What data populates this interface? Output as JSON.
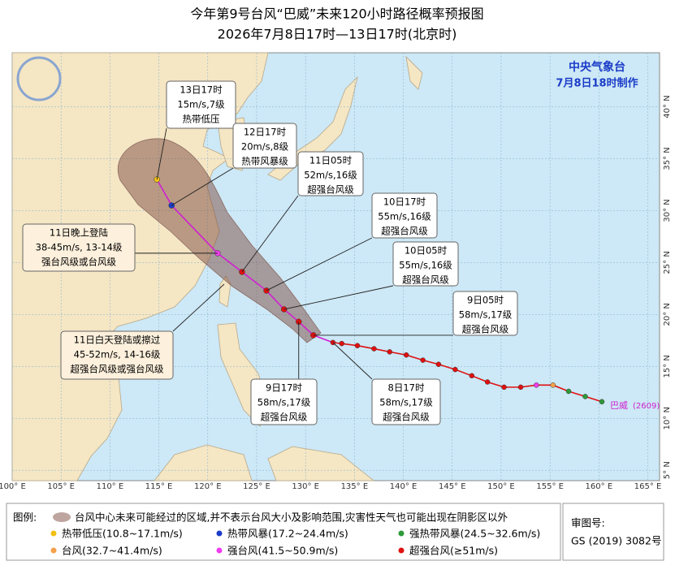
{
  "title": "今年第9号台风“巴威”未来120小时路径概率预报图",
  "subtitle": "2026年7月8日17时—13日17时(北京时)",
  "agency": "中央气象台",
  "issued": "7月8日18时制作",
  "typhoon": {
    "name": "巴威",
    "code": "(2609)"
  },
  "map": {
    "lon_range": [
      100,
      166.2
    ],
    "lat_range": [
      4,
      45.2
    ],
    "lon_ticks": [
      {
        "value": 100,
        "label": "100° E"
      },
      {
        "value": 105,
        "label": "105° E"
      },
      {
        "value": 110,
        "label": "110° E"
      },
      {
        "value": 115,
        "label": "115° E"
      },
      {
        "value": 120,
        "label": "120° E"
      },
      {
        "value": 125,
        "label": "125° E"
      },
      {
        "value": 130,
        "label": "130° E"
      },
      {
        "value": 135,
        "label": "135° E"
      },
      {
        "value": 140,
        "label": "140° E"
      },
      {
        "value": 145,
        "label": "145° E"
      },
      {
        "value": 150,
        "label": "150° E"
      },
      {
        "value": 155,
        "label": "155° E"
      },
      {
        "value": 160,
        "label": "160° E"
      },
      {
        "value": 165,
        "label": "165° E"
      }
    ],
    "lat_ticks": [
      {
        "value": 5,
        "label": "5° N"
      },
      {
        "value": 10,
        "label": "10° N"
      },
      {
        "value": 15,
        "label": "15° N"
      },
      {
        "value": 20,
        "label": "20° N"
      },
      {
        "value": 25,
        "label": "25° N"
      },
      {
        "value": 30,
        "label": "30° N"
      },
      {
        "value": 35,
        "label": "35° N"
      },
      {
        "value": 40,
        "label": "40° N"
      }
    ]
  },
  "observed": [
    {
      "lon": 160.3,
      "lat": 11.6,
      "category": 2
    },
    {
      "lon": 158.6,
      "lat": 12.1,
      "category": 2
    },
    {
      "lon": 156.9,
      "lat": 12.6,
      "category": 2
    },
    {
      "lon": 155.3,
      "lat": 13.2,
      "category": 3
    },
    {
      "lon": 153.6,
      "lat": 13.2,
      "category": 4
    },
    {
      "lon": 152.0,
      "lat": 13.0,
      "category": 5
    },
    {
      "lon": 150.3,
      "lat": 13.0,
      "category": 5
    },
    {
      "lon": 148.6,
      "lat": 13.5,
      "category": 5
    },
    {
      "lon": 147.0,
      "lat": 14.1,
      "category": 5
    },
    {
      "lon": 145.3,
      "lat": 14.7,
      "category": 5
    },
    {
      "lon": 143.6,
      "lat": 15.2,
      "category": 5
    },
    {
      "lon": 142.0,
      "lat": 15.6,
      "category": 5
    },
    {
      "lon": 140.3,
      "lat": 16.1,
      "category": 5
    },
    {
      "lon": 138.6,
      "lat": 16.4,
      "category": 5
    },
    {
      "lon": 137.0,
      "lat": 16.7,
      "category": 5
    },
    {
      "lon": 135.3,
      "lat": 17.0,
      "category": 5
    },
    {
      "lon": 133.7,
      "lat": 17.2,
      "category": 5
    },
    {
      "lon": 132.8,
      "lat": 17.3,
      "category": 5
    }
  ],
  "forecast": [
    {
      "lon": 130.8,
      "lat": 18.0,
      "category": 5
    },
    {
      "lon": 129.3,
      "lat": 19.3,
      "category": 5
    },
    {
      "lon": 127.8,
      "lat": 20.5,
      "category": 5
    },
    {
      "lon": 126.0,
      "lat": 22.3,
      "category": 5
    },
    {
      "lon": 123.5,
      "lat": 24.1,
      "category": 5
    },
    {
      "lon": 121.0,
      "lat": 25.9,
      "category": 4
    },
    {
      "lon": 116.3,
      "lat": 30.5,
      "category": 1
    },
    {
      "lon": 114.8,
      "lat": 33.0,
      "category": 0
    }
  ],
  "annotations": [
    {
      "lines": [
        "13日17时",
        "15m/s,7级",
        "热带低压"
      ]
    },
    {
      "lines": [
        "12日17时",
        "20m/s,8级",
        "热带风暴级"
      ]
    },
    {
      "lines": [
        "11日05时",
        "52m/s,16级",
        "超强台风级"
      ]
    },
    {
      "lines": [
        "10日17时",
        "55m/s,16级",
        "超强台风级"
      ]
    },
    {
      "lines": [
        "10日05时",
        "55m/s,16级",
        "超强台风级"
      ]
    },
    {
      "lines": [
        "9日05时",
        "58m/s,17级",
        "超强台风级"
      ]
    },
    {
      "lines": [
        "8日17时",
        "58m/s,17级",
        "超强台风级"
      ]
    },
    {
      "lines": [
        "9日17时",
        "58m/s,17级",
        "超强台风级"
      ]
    },
    {
      "lines": [
        "11日晚上登陆",
        "38-45m/s, 13-14级",
        "强台风级或台风级"
      ]
    },
    {
      "lines": [
        "11日白天登陆或擦过",
        "45-52m/s, 14-16级",
        "超强台风级或强台风级"
      ]
    }
  ],
  "legend": {
    "title": "图例:",
    "cone": "台风中心未来可能经过的区域,并不表示台风大小及影响范围,灾害性天气也可能出现在阴影区以外",
    "categories": [
      {
        "name": "热带低压(10.8~17.1m/s)",
        "color": "#f2c014"
      },
      {
        "name": "热带风暴(17.2~24.4m/s)",
        "color": "#1a3cc8"
      },
      {
        "name": "强热带风暴(24.5~32.6m/s)",
        "color": "#2e9a3a"
      },
      {
        "name": "台风(32.7~41.4m/s)",
        "color": "#f5a04a"
      },
      {
        "name": "强台风(41.5~50.9m/s)",
        "color": "#f03cf0"
      },
      {
        "name": "超强台风(≥51m/s)",
        "color": "#e01010"
      }
    ]
  },
  "review": {
    "label": "审图号:",
    "number": "GS (2019) 3082号"
  }
}
